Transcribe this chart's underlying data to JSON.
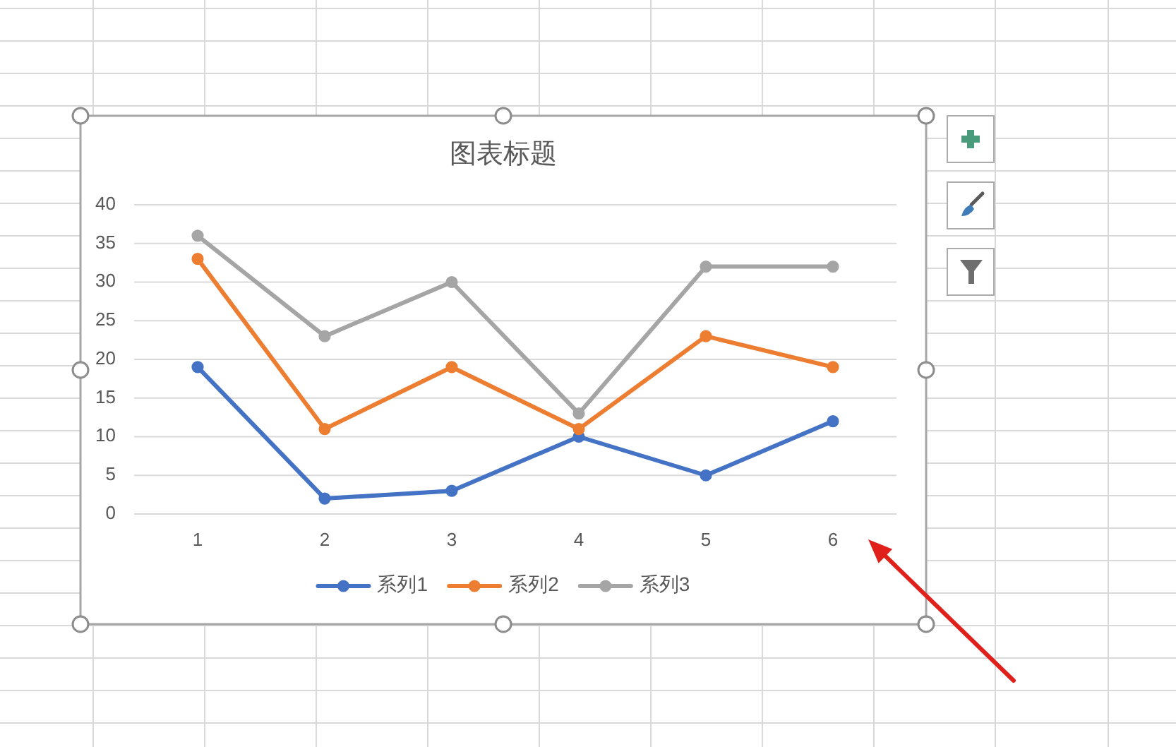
{
  "chart_data": {
    "type": "line",
    "title": "图表标题",
    "categories": [
      "1",
      "2",
      "3",
      "4",
      "5",
      "6"
    ],
    "series": [
      {
        "name": "系列1",
        "color": "#4472c4",
        "values": [
          19,
          2,
          3,
          10,
          5,
          12
        ]
      },
      {
        "name": "系列2",
        "color": "#ed7d31",
        "values": [
          33,
          11,
          19,
          11,
          23,
          19
        ]
      },
      {
        "name": "系列3",
        "color": "#a5a5a5",
        "values": [
          36,
          23,
          30,
          13,
          32,
          32
        ]
      }
    ],
    "ylim": [
      0,
      40
    ],
    "yticks": [
      0,
      5,
      10,
      15,
      20,
      25,
      30,
      35,
      40
    ],
    "grid": "y",
    "legend": "bottom",
    "marker": "circle",
    "line_style": "solid"
  }
}
